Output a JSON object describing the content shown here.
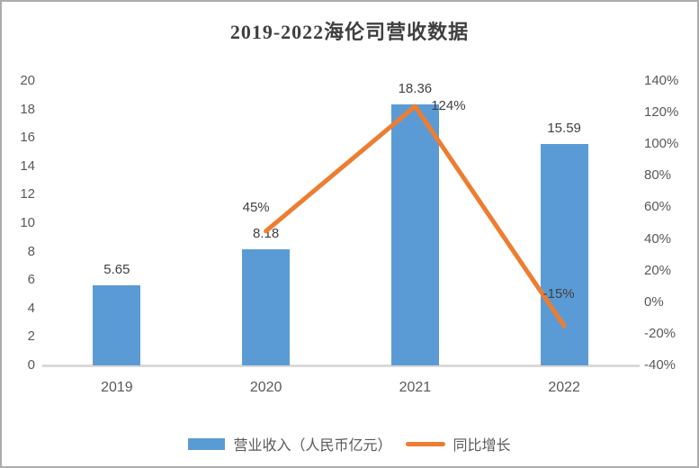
{
  "title": "2019-2022海伦司营收数据",
  "chart_data": {
    "type": "bar+line combo",
    "title": "2019-2022海伦司营收数据",
    "categories": [
      "2019",
      "2020",
      "2021",
      "2022"
    ],
    "series": [
      {
        "name": "营业收入（人民币亿元）",
        "type": "bar",
        "axis": "left",
        "color": "#5B9BD5",
        "values": [
          5.65,
          8.18,
          18.36,
          15.59
        ],
        "labels": [
          "5.65",
          "8.18",
          "18.36",
          "15.59"
        ]
      },
      {
        "name": "同比增长",
        "type": "line",
        "axis": "right",
        "color": "#ED7D31",
        "values": [
          null,
          45,
          124,
          -15
        ],
        "labels": [
          null,
          "45%",
          "124%",
          "-15%"
        ]
      }
    ],
    "left_axis": {
      "min": 0,
      "max": 20,
      "step": 2,
      "ticks": [
        "0",
        "2",
        "4",
        "6",
        "8",
        "10",
        "12",
        "14",
        "16",
        "18",
        "20"
      ]
    },
    "right_axis": {
      "min": -40,
      "max": 140,
      "step": 20,
      "ticks": [
        "-40%",
        "-20%",
        "0%",
        "20%",
        "40%",
        "60%",
        "80%",
        "100%",
        "120%",
        "140%"
      ]
    },
    "grid": false,
    "legend_position": "bottom"
  },
  "legend": {
    "items": [
      {
        "label": "营业收入（人民币亿元）",
        "swatch": "bar",
        "color": "#5B9BD5"
      },
      {
        "label": "同比增长",
        "swatch": "line",
        "color": "#ED7D31"
      }
    ]
  },
  "colors": {
    "bar": "#5B9BD5",
    "line": "#ED7D31",
    "axis_line": "#D9D9D9",
    "tick_text": "#595959",
    "label_text": "#404040",
    "frame_border": "#ACACAC"
  }
}
